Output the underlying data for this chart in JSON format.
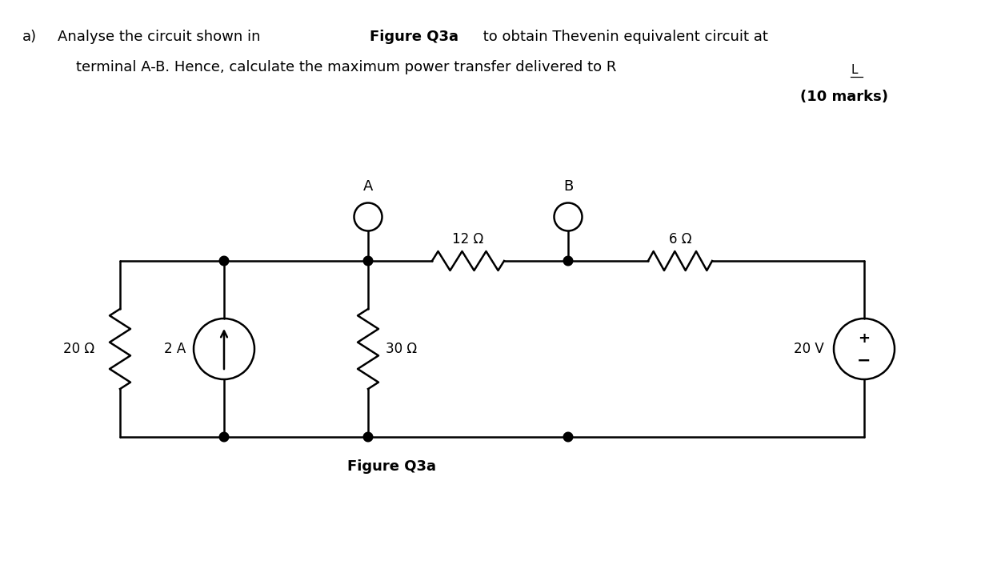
{
  "fig_label": "Figure Q3a",
  "label_A": "A",
  "label_B": "B",
  "label_20ohm": "20 Ω",
  "label_2A": "2 A",
  "label_30ohm": "30 Ω",
  "label_12ohm": "12 Ω",
  "label_6ohm": "6 Ω",
  "label_20V": "20 V",
  "bg_color": "#ffffff",
  "line_color": "#000000",
  "font_size_text": 13,
  "font_size_labels": 12,
  "lw": 1.8
}
